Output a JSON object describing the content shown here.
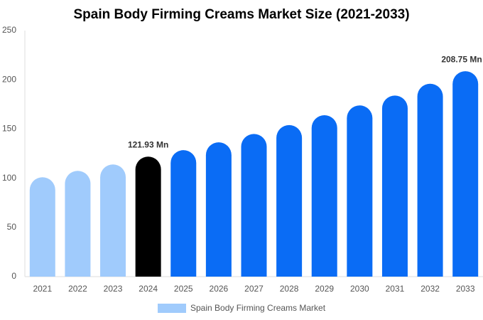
{
  "chart_data": {
    "type": "bar",
    "title": "Spain Body Firming Creams Market Size (2021-2033)",
    "categories": [
      "2021",
      "2022",
      "2023",
      "2024",
      "2025",
      "2026",
      "2027",
      "2028",
      "2029",
      "2030",
      "2031",
      "2032",
      "2033"
    ],
    "series": [
      {
        "name": "Spain Body Firming Creams Market",
        "color": "#a0cbfc",
        "values": [
          101,
          107.5,
          114,
          121.93,
          128.5,
          136.5,
          145,
          154,
          164,
          174,
          184,
          196,
          208.75
        ],
        "value_labels": [
          null,
          null,
          null,
          "121.93 Mn",
          null,
          null,
          null,
          null,
          null,
          null,
          null,
          null,
          "208.75 Mn"
        ],
        "colors": [
          "#a0cbfc",
          "#a0cbfc",
          "#a0cbfc",
          "#000000",
          "#0a6cf5",
          "#0a6cf5",
          "#0a6cf5",
          "#0a6cf5",
          "#0a6cf5",
          "#0a6cf5",
          "#0a6cf5",
          "#0a6cf5",
          "#0a6cf5"
        ]
      }
    ],
    "ylim": [
      0,
      250
    ],
    "yticks": [
      0,
      50,
      100,
      150,
      200,
      250
    ],
    "grid": false
  }
}
